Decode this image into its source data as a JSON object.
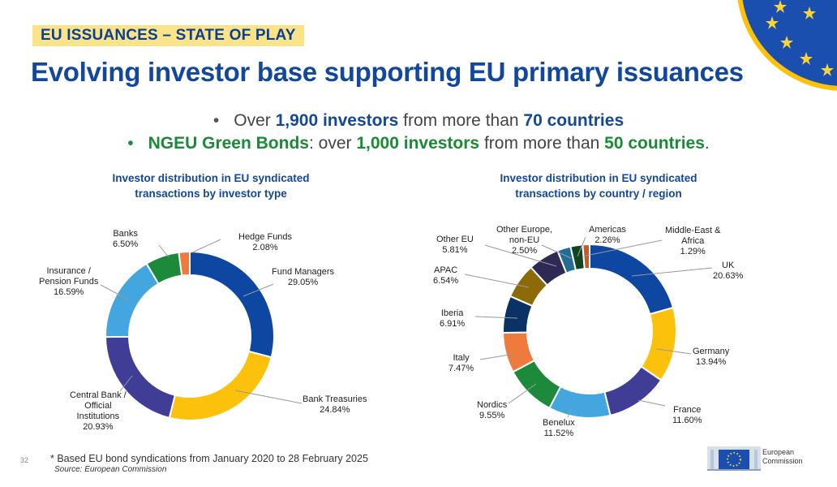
{
  "header": {
    "kicker": "EU ISSUANCES – STATE OF PLAY",
    "title": "Evolving investor base supporting EU primary issuances"
  },
  "bullets": {
    "b1_prefix": "Over ",
    "b1_num": "1,900 investors",
    "b1_mid": " from more than ",
    "b1_countries": "70 countries",
    "b2_label": "NGEU Green Bonds",
    "b2_mid": ": over ",
    "b2_num": "1,000 investors",
    "b2_mid2": " from more than ",
    "b2_countries": "50 countries",
    "b2_end": "."
  },
  "chart_data": [
    {
      "type": "donut",
      "title_line1": "Investor distribution in EU syndicated",
      "title_line2": "transactions by investor type",
      "slices": [
        {
          "name": "Fund Managers",
          "value": 29.05,
          "label": "29.05%",
          "color": "#0d47a1"
        },
        {
          "name": "Bank Treasuries",
          "value": 24.84,
          "label": "24.84%",
          "color": "#fbc10b"
        },
        {
          "name": "Central Bank / Official Institutions",
          "value": 20.93,
          "label": "20.93%",
          "color": "#3f3d96"
        },
        {
          "name": "Insurance / Pension Funds",
          "value": 16.59,
          "label": "16.59%",
          "color": "#43a6df"
        },
        {
          "name": "Banks",
          "value": 6.5,
          "label": "6.50%",
          "color": "#1d8a3b"
        },
        {
          "name": "Hedge Funds",
          "value": 2.08,
          "label": "2.08%",
          "color": "#ee7b3d"
        }
      ],
      "labels": {
        "fund_managers": [
          "Fund Managers",
          "29.05%"
        ],
        "bank_treasuries": [
          "Bank Treasuries",
          "24.84%"
        ],
        "central_bank": [
          "Central Bank /",
          "Official",
          "Institutions",
          "20.93%"
        ],
        "insurance": [
          "Insurance /",
          "Pension Funds",
          "16.59%"
        ],
        "banks": [
          "Banks",
          "6.50%"
        ],
        "hedge_funds": [
          "Hedge Funds",
          "2.08%"
        ]
      }
    },
    {
      "type": "donut",
      "title_line1": "Investor distribution in EU syndicated",
      "title_line2": "transactions by country / region",
      "slices": [
        {
          "name": "UK",
          "value": 20.63,
          "label": "20.63%",
          "color": "#0d47a1"
        },
        {
          "name": "Germany",
          "value": 13.94,
          "label": "13.94%",
          "color": "#fbc10b"
        },
        {
          "name": "France",
          "value": 11.6,
          "label": "11.60%",
          "color": "#3f3d96"
        },
        {
          "name": "Benelux",
          "value": 11.52,
          "label": "11.52%",
          "color": "#43a6df"
        },
        {
          "name": "Nordics",
          "value": 9.55,
          "label": "9.55%",
          "color": "#1d8a3b"
        },
        {
          "name": "Italy",
          "value": 7.47,
          "label": "7.47%",
          "color": "#ee7b3d"
        },
        {
          "name": "Iberia",
          "value": 6.91,
          "label": "6.91%",
          "color": "#0a3264"
        },
        {
          "name": "APAC",
          "value": 6.54,
          "label": "6.54%",
          "color": "#8c6a06"
        },
        {
          "name": "Other EU",
          "value": 5.81,
          "label": "5.81%",
          "color": "#2f2a55"
        },
        {
          "name": "Other Europe, non-EU",
          "value": 2.5,
          "label": "2.50%",
          "color": "#236d95"
        },
        {
          "name": "Americas",
          "value": 2.26,
          "label": "2.26%",
          "color": "#114522"
        },
        {
          "name": "Middle-East & Africa",
          "value": 1.29,
          "label": "1.29%",
          "color": "#c8582a"
        }
      ],
      "labels": {
        "uk": [
          "UK",
          "20.63%"
        ],
        "germany": [
          "Germany",
          "13.94%"
        ],
        "france": [
          "France",
          "11.60%"
        ],
        "benelux": [
          "Benelux",
          "11.52%"
        ],
        "nordics": [
          "Nordics",
          "9.55%"
        ],
        "italy": [
          "Italy",
          "7.47%"
        ],
        "iberia": [
          "Iberia",
          "6.91%"
        ],
        "apac": [
          "APAC",
          "6.54%"
        ],
        "other_eu": [
          "Other EU",
          "5.81%"
        ],
        "other_europe": [
          "Other Europe,",
          "non-EU",
          "2.50%"
        ],
        "americas": [
          "Americas",
          "2.26%"
        ],
        "mea": [
          "Middle-East &",
          "Africa",
          "1.29%"
        ]
      }
    }
  ],
  "footer": {
    "page": "32",
    "note": "* Based EU bond syndications from January 2020 to 28 February 2025",
    "source": "Source: European Commission",
    "logo_line1": "European",
    "logo_line2": "Commission"
  },
  "colors": {
    "primary_blue": "#12479b",
    "green": "#1a8a35",
    "kicker_bg": "#fbe38a"
  }
}
